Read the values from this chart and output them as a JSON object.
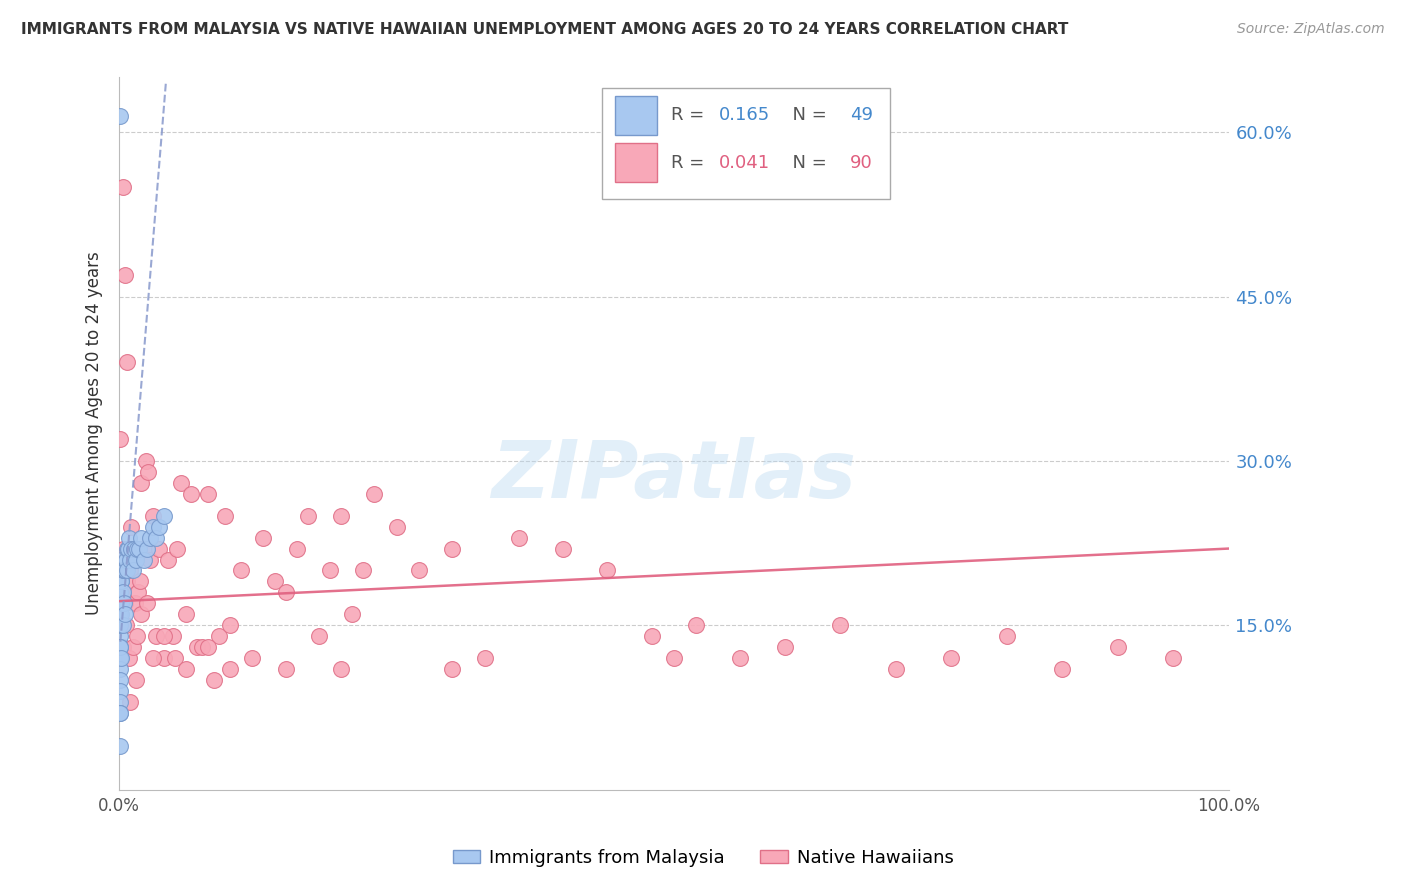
{
  "title": "IMMIGRANTS FROM MALAYSIA VS NATIVE HAWAIIAN UNEMPLOYMENT AMONG AGES 20 TO 24 YEARS CORRELATION CHART",
  "source": "Source: ZipAtlas.com",
  "ylabel": "Unemployment Among Ages 20 to 24 years",
  "xlim": [
    0,
    1.0
  ],
  "ylim": [
    0,
    0.65
  ],
  "yticks": [
    0.0,
    0.15,
    0.3,
    0.45,
    0.6
  ],
  "ytick_labels": [
    "",
    "15.0%",
    "30.0%",
    "45.0%",
    "60.0%"
  ],
  "xtick_labels": [
    "0.0%",
    "",
    "",
    "",
    "100.0%"
  ],
  "grid_color": "#cccccc",
  "background_color": "#ffffff",
  "blue_color": "#a8c8f0",
  "blue_edge_color": "#7799cc",
  "pink_color": "#f8a8b8",
  "pink_edge_color": "#e07088",
  "trend_blue_color": "#8899cc",
  "trend_pink_color": "#e06080",
  "R_blue": 0.165,
  "N_blue": 49,
  "R_pink": 0.041,
  "N_pink": 90,
  "legend_blue_label": "Immigrants from Malaysia",
  "legend_pink_label": "Native Hawaiians",
  "title_color": "#333333",
  "axis_label_color": "#333333",
  "right_tick_color": "#4488cc",
  "watermark": "ZIPatlas",
  "malaysia_x": [
    0.0005,
    0.0005,
    0.0005,
    0.0005,
    0.0005,
    0.0005,
    0.0005,
    0.0005,
    0.0005,
    0.001,
    0.001,
    0.001,
    0.001,
    0.001,
    0.001,
    0.0015,
    0.0015,
    0.002,
    0.002,
    0.002,
    0.002,
    0.003,
    0.003,
    0.003,
    0.004,
    0.004,
    0.005,
    0.005,
    0.006,
    0.007,
    0.007,
    0.008,
    0.009,
    0.01,
    0.011,
    0.012,
    0.013,
    0.015,
    0.016,
    0.018,
    0.02,
    0.022,
    0.025,
    0.028,
    0.03,
    0.033,
    0.036,
    0.04,
    0.001
  ],
  "malaysia_y": [
    0.14,
    0.13,
    0.12,
    0.11,
    0.1,
    0.09,
    0.08,
    0.07,
    0.04,
    0.18,
    0.17,
    0.16,
    0.15,
    0.13,
    0.07,
    0.19,
    0.16,
    0.21,
    0.19,
    0.17,
    0.12,
    0.2,
    0.18,
    0.15,
    0.2,
    0.17,
    0.2,
    0.16,
    0.21,
    0.22,
    0.2,
    0.22,
    0.23,
    0.21,
    0.22,
    0.2,
    0.22,
    0.21,
    0.22,
    0.22,
    0.23,
    0.21,
    0.22,
    0.23,
    0.24,
    0.23,
    0.24,
    0.25,
    0.615
  ],
  "native_x": [
    0.001,
    0.002,
    0.003,
    0.003,
    0.004,
    0.005,
    0.006,
    0.007,
    0.008,
    0.009,
    0.01,
    0.011,
    0.012,
    0.013,
    0.014,
    0.015,
    0.016,
    0.017,
    0.018,
    0.019,
    0.02,
    0.022,
    0.024,
    0.026,
    0.028,
    0.03,
    0.033,
    0.036,
    0.04,
    0.044,
    0.048,
    0.052,
    0.056,
    0.06,
    0.065,
    0.07,
    0.075,
    0.08,
    0.085,
    0.09,
    0.095,
    0.1,
    0.11,
    0.12,
    0.13,
    0.14,
    0.15,
    0.16,
    0.17,
    0.18,
    0.19,
    0.2,
    0.21,
    0.22,
    0.23,
    0.25,
    0.27,
    0.3,
    0.33,
    0.36,
    0.4,
    0.44,
    0.48,
    0.52,
    0.56,
    0.6,
    0.65,
    0.7,
    0.75,
    0.8,
    0.85,
    0.9,
    0.95,
    0.003,
    0.005,
    0.007,
    0.01,
    0.015,
    0.02,
    0.025,
    0.03,
    0.04,
    0.05,
    0.06,
    0.08,
    0.1,
    0.15,
    0.2,
    0.3,
    0.5
  ],
  "native_y": [
    0.32,
    0.18,
    0.22,
    0.13,
    0.2,
    0.17,
    0.15,
    0.19,
    0.22,
    0.12,
    0.2,
    0.24,
    0.13,
    0.22,
    0.17,
    0.21,
    0.14,
    0.18,
    0.22,
    0.19,
    0.28,
    0.22,
    0.3,
    0.29,
    0.21,
    0.25,
    0.14,
    0.22,
    0.12,
    0.21,
    0.14,
    0.22,
    0.28,
    0.16,
    0.27,
    0.13,
    0.13,
    0.27,
    0.1,
    0.14,
    0.25,
    0.15,
    0.2,
    0.12,
    0.23,
    0.19,
    0.18,
    0.22,
    0.25,
    0.14,
    0.2,
    0.25,
    0.16,
    0.2,
    0.27,
    0.24,
    0.2,
    0.22,
    0.12,
    0.23,
    0.22,
    0.2,
    0.14,
    0.15,
    0.12,
    0.13,
    0.15,
    0.11,
    0.12,
    0.14,
    0.11,
    0.13,
    0.12,
    0.55,
    0.47,
    0.39,
    0.08,
    0.1,
    0.16,
    0.17,
    0.12,
    0.14,
    0.12,
    0.11,
    0.13,
    0.11,
    0.11,
    0.11,
    0.11,
    0.12
  ]
}
